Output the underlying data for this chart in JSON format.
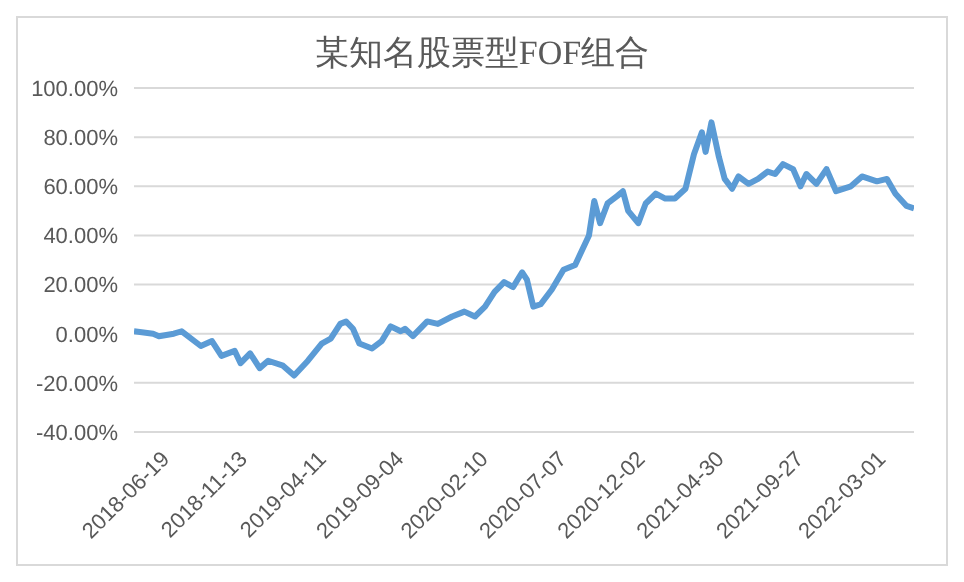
{
  "chart_data": {
    "type": "line",
    "title": "某知名股票型FOF组合",
    "x": [
      "2018-04-19",
      "2018-05-25",
      "2018-06-05",
      "2018-07-03",
      "2018-07-18",
      "2018-08-23",
      "2018-09-13",
      "2018-10-01",
      "2018-10-26",
      "2018-11-06",
      "2018-11-24",
      "2018-12-12",
      "2018-12-28",
      "2019-01-25",
      "2019-02-15",
      "2019-03-13",
      "2019-04-08",
      "2019-04-25",
      "2019-05-13",
      "2019-05-24",
      "2019-06-06",
      "2019-06-18",
      "2019-07-12",
      "2019-07-30",
      "2019-08-16",
      "2019-09-04",
      "2019-09-12",
      "2019-09-27",
      "2019-10-24",
      "2019-11-13",
      "2019-12-10",
      "2020-01-02",
      "2020-01-22",
      "2020-02-10",
      "2020-02-28",
      "2020-03-17",
      "2020-04-03",
      "2020-04-20",
      "2020-04-29",
      "2020-05-11",
      "2020-05-25",
      "2020-06-15",
      "2020-07-07",
      "2020-07-29",
      "2020-08-24",
      "2020-09-03",
      "2020-09-14",
      "2020-09-28",
      "2020-10-16",
      "2020-10-27",
      "2020-11-06",
      "2020-11-25",
      "2020-12-09",
      "2020-12-28",
      "2021-01-15",
      "2021-02-02",
      "2021-02-22",
      "2021-03-10",
      "2021-03-25",
      "2021-04-01",
      "2021-04-12",
      "2021-04-26",
      "2021-05-07",
      "2021-05-21",
      "2021-06-02",
      "2021-06-21",
      "2021-07-09",
      "2021-07-27",
      "2021-08-10",
      "2021-08-25",
      "2021-09-13",
      "2021-09-27",
      "2021-10-08",
      "2021-10-27",
      "2021-11-15",
      "2021-12-03",
      "2021-12-31",
      "2022-01-21",
      "2022-02-18",
      "2022-03-09",
      "2022-03-25",
      "2022-04-15",
      "2022-04-29"
    ],
    "series": [
      {
        "color": "#5b9bd5",
        "values": [
          1,
          0,
          -1,
          0,
          1,
          -5,
          -3,
          -9,
          -7,
          -12,
          -8,
          -14,
          -11,
          -13,
          -17,
          -11,
          -4,
          -2,
          4,
          5,
          2,
          -4,
          -6,
          -3,
          3,
          1,
          2,
          -1,
          5,
          4,
          7,
          9,
          7,
          11,
          17,
          21,
          19,
          25,
          22,
          11,
          12,
          18,
          26,
          28,
          40,
          54,
          45,
          53,
          56,
          58,
          50,
          45,
          53,
          57,
          55,
          55,
          59,
          73,
          82,
          74,
          86,
          72,
          63,
          59,
          64,
          61,
          63,
          66,
          65,
          69,
          67,
          60,
          65,
          61,
          67,
          58,
          60,
          64,
          62,
          63,
          57,
          52,
          51
        ]
      }
    ],
    "xlim": [
      "2018-04-19",
      "2022-04-29"
    ],
    "xticks": [
      "2018-06-19",
      "2018-11-13",
      "2019-04-11",
      "2019-09-04",
      "2020-02-10",
      "2020-07-07",
      "2020-12-02",
      "2021-04-30",
      "2021-09-27",
      "2022-03-01"
    ],
    "ylim": [
      -40,
      100
    ],
    "yticks": [
      {
        "value": -40,
        "label": "-40.00%"
      },
      {
        "value": -20,
        "label": "-20.00%"
      },
      {
        "value": 0,
        "label": "0.00%"
      },
      {
        "value": 20,
        "label": "20.00%"
      },
      {
        "value": 40,
        "label": "40.00%"
      },
      {
        "value": 60,
        "label": "60.00%"
      },
      {
        "value": 80,
        "label": "80.00%"
      },
      {
        "value": 100,
        "label": "100.00%"
      }
    ],
    "grid": "y"
  }
}
